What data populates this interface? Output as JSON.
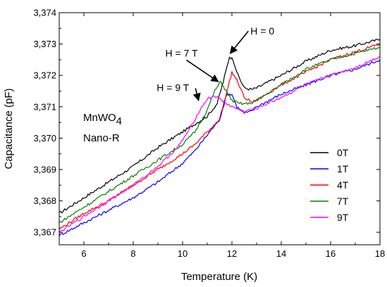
{
  "chart_data": {
    "type": "line",
    "xlabel": "Temperature (K)",
    "ylabel": "Capacitance (pF)",
    "xlim": [
      5,
      18
    ],
    "ylim": [
      3.3666,
      3.374
    ],
    "x_ticks": [
      6,
      8,
      10,
      12,
      14,
      16,
      18
    ],
    "x_tick_labels": [
      "6",
      "8",
      "10",
      "12",
      "14",
      "16",
      "18"
    ],
    "y_ticks": [
      3.367,
      3.368,
      3.369,
      3.37,
      3.371,
      3.372,
      3.373,
      3.374
    ],
    "y_tick_labels": [
      "3,367",
      "3,368",
      "3,369",
      "3,370",
      "3,371",
      "3,372",
      "3,373",
      "3,374"
    ],
    "grid": false,
    "legend_position": "bottom-right",
    "sample_label": {
      "main": "MnWO",
      "subscript": "4",
      "line2": "Nano-R"
    },
    "annotations": [
      {
        "text": "H = 0",
        "x": 12.75,
        "y": 3.3733,
        "arrow_to": [
          11.93,
          3.3727
        ]
      },
      {
        "text": "H = 7 T",
        "x": 9.3,
        "y": 3.3726,
        "arrow_to": [
          11.45,
          3.3718
        ]
      },
      {
        "text": "H = 9 T",
        "x": 8.95,
        "y": 3.3715,
        "arrow_to": [
          10.65,
          3.3712
        ]
      }
    ],
    "series": [
      {
        "name": "0T",
        "color": "#000000",
        "x": [
          5.0,
          6.0,
          7.0,
          8.0,
          9.0,
          10.0,
          10.5,
          11.0,
          11.4,
          11.65,
          11.9,
          12.05,
          12.25,
          12.5,
          12.8,
          13.0,
          14.0,
          15.0,
          16.0,
          17.0,
          18.0
        ],
        "y": [
          3.3676,
          3.3681,
          3.3686,
          3.3691,
          3.3697,
          3.3702,
          3.37045,
          3.3707,
          3.3711,
          3.3718,
          3.3726,
          3.3725,
          3.372,
          3.3716,
          3.37155,
          3.3716,
          3.372,
          3.37245,
          3.3728,
          3.37295,
          3.37315
        ]
      },
      {
        "name": "1T",
        "color": "#0000ff",
        "x": [
          5.0,
          6.0,
          7.0,
          8.0,
          9.0,
          10.0,
          10.5,
          11.0,
          11.5,
          11.8,
          12.0,
          12.2,
          12.5,
          12.8,
          13.0,
          14.0,
          15.0,
          16.0,
          17.0,
          18.0
        ],
        "y": [
          3.3669,
          3.3673,
          3.3677,
          3.3681,
          3.3686,
          3.3692,
          3.3696,
          3.3701,
          3.3706,
          3.3714,
          3.3714,
          3.371,
          3.3708,
          3.37085,
          3.371,
          3.3714,
          3.3717,
          3.372,
          3.3722,
          3.3725
        ]
      },
      {
        "name": "4T",
        "color": "#ff0000",
        "x": [
          5.0,
          6.0,
          7.0,
          8.0,
          9.0,
          10.0,
          10.5,
          11.0,
          11.5,
          11.8,
          12.0,
          12.2,
          12.5,
          12.8,
          13.0,
          14.0,
          15.0,
          16.0,
          17.0,
          18.0
        ],
        "y": [
          3.3671,
          3.3676,
          3.368,
          3.3685,
          3.369,
          3.3695,
          3.3698,
          3.3702,
          3.3706,
          3.3715,
          3.3721,
          3.37185,
          3.3713,
          3.37115,
          3.3712,
          3.3717,
          3.3721,
          3.3725,
          3.37275,
          3.373
        ]
      },
      {
        "name": "7T",
        "color": "#008000",
        "x": [
          5.0,
          6.0,
          7.0,
          8.0,
          9.0,
          10.0,
          10.5,
          11.0,
          11.3,
          11.55,
          11.8,
          12.0,
          12.3,
          12.7,
          13.0,
          14.0,
          15.0,
          16.0,
          17.0,
          18.0
        ],
        "y": [
          3.3673,
          3.3678,
          3.3683,
          3.3688,
          3.3693,
          3.3698,
          3.3702,
          3.3709,
          3.3715,
          3.3718,
          3.37145,
          3.3712,
          3.3711,
          3.3711,
          3.3712,
          3.3717,
          3.3722,
          3.3725,
          3.3727,
          3.3729
        ]
      },
      {
        "name": "9T",
        "color": "#ff00ff",
        "x": [
          5.0,
          6.0,
          7.0,
          8.0,
          9.0,
          9.8,
          10.3,
          10.7,
          11.0,
          11.3,
          11.7,
          12.0,
          12.5,
          13.0,
          14.0,
          15.0,
          16.0,
          17.0,
          18.0
        ],
        "y": [
          3.367,
          3.3675,
          3.368,
          3.3685,
          3.3691,
          3.3697,
          3.3703,
          3.3709,
          3.37125,
          3.37135,
          3.37115,
          3.371,
          3.37085,
          3.37095,
          3.3713,
          3.3717,
          3.372,
          3.37225,
          3.3726
        ]
      }
    ]
  }
}
